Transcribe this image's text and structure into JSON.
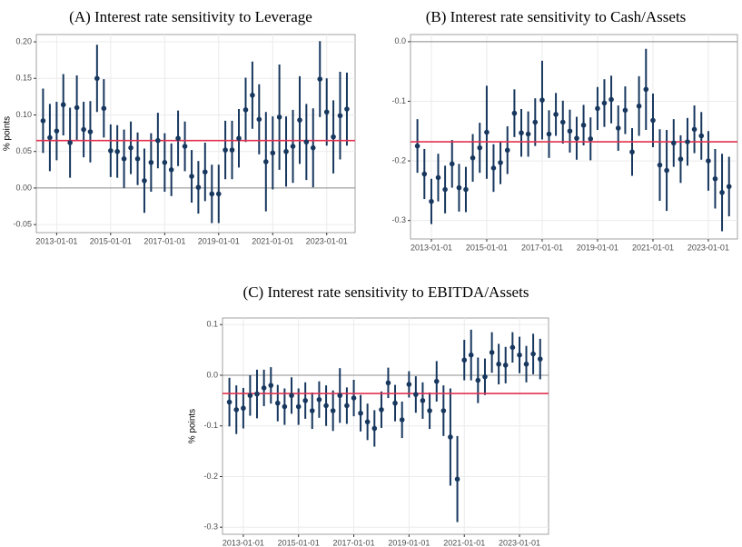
{
  "chart_data": [
    {
      "type": "errorbar",
      "title": "(A)  Interest rate sensitivity to Leverage",
      "y_label": "% points",
      "x": [
        "2012-07-01",
        "2012-10-01",
        "2013-01-01",
        "2013-04-01",
        "2013-07-01",
        "2013-10-01",
        "2014-01-01",
        "2014-04-01",
        "2014-07-01",
        "2014-10-01",
        "2015-01-01",
        "2015-04-01",
        "2015-07-01",
        "2015-10-01",
        "2016-01-01",
        "2016-04-01",
        "2016-07-01",
        "2016-10-01",
        "2017-01-01",
        "2017-04-01",
        "2017-07-01",
        "2017-10-01",
        "2018-01-01",
        "2018-04-01",
        "2018-07-01",
        "2018-10-01",
        "2019-01-01",
        "2019-04-01",
        "2019-07-01",
        "2019-10-01",
        "2020-01-01",
        "2020-04-01",
        "2020-07-01",
        "2020-10-01",
        "2021-01-01",
        "2021-04-01",
        "2021-07-01",
        "2021-10-01",
        "2022-01-01",
        "2022-04-01",
        "2022-07-01",
        "2022-10-01",
        "2023-01-01",
        "2023-04-01",
        "2023-07-01",
        "2023-10-01"
      ],
      "values": [
        0.092,
        0.069,
        0.078,
        0.114,
        0.062,
        0.11,
        0.08,
        0.077,
        0.15,
        0.109,
        0.051,
        0.05,
        0.04,
        0.055,
        0.04,
        0.01,
        0.035,
        0.065,
        0.035,
        0.025,
        0.068,
        0.057,
        0.016,
        0.001,
        0.022,
        -0.008,
        -0.008,
        0.052,
        0.052,
        0.068,
        0.107,
        0.127,
        0.094,
        0.036,
        0.048,
        0.097,
        0.05,
        0.057,
        0.093,
        0.063,
        0.055,
        0.149,
        0.104,
        0.07,
        0.099,
        0.108
      ],
      "errors": [
        0.044,
        0.046,
        0.04,
        0.042,
        0.048,
        0.044,
        0.038,
        0.042,
        0.046,
        0.04,
        0.036,
        0.036,
        0.04,
        0.036,
        0.036,
        0.044,
        0.04,
        0.038,
        0.04,
        0.036,
        0.038,
        0.034,
        0.036,
        0.036,
        0.04,
        0.04,
        0.04,
        0.04,
        0.04,
        0.04,
        0.044,
        0.046,
        0.048,
        0.068,
        0.05,
        0.072,
        0.048,
        0.05,
        0.06,
        0.052,
        0.054,
        0.052,
        0.046,
        0.05,
        0.06,
        0.05
      ],
      "reference": 0.065,
      "color": "#17375e",
      "reference_color": "#e2304f",
      "xlim": [
        "2012-04-01",
        "2024-01-20"
      ],
      "xticks": [
        "2013-01-01",
        "2015-01-01",
        "2017-01-01",
        "2019-01-01",
        "2021-01-01",
        "2023-01-01"
      ],
      "ylim": [
        -0.061,
        0.21
      ],
      "yticks": [
        {
          "value": 0.2,
          "label": "0.20"
        },
        0.15,
        {
          "value": 0.1,
          "label": "0.10"
        },
        0.05,
        {
          "value": 0,
          "label": "0.00"
        },
        -0.05
      ],
      "grid": true
    },
    {
      "type": "errorbar",
      "title": "(B)  Interest rate sensitivity to Cash/Assets",
      "x": [
        "2012-07-01",
        "2012-10-01",
        "2013-01-01",
        "2013-04-01",
        "2013-07-01",
        "2013-10-01",
        "2014-01-01",
        "2014-04-01",
        "2014-07-01",
        "2014-10-01",
        "2015-01-01",
        "2015-04-01",
        "2015-07-01",
        "2015-10-01",
        "2016-01-01",
        "2016-04-01",
        "2016-07-01",
        "2016-10-01",
        "2017-01-01",
        "2017-04-01",
        "2017-07-01",
        "2017-10-01",
        "2018-01-01",
        "2018-04-01",
        "2018-07-01",
        "2018-10-01",
        "2019-01-01",
        "2019-04-01",
        "2019-07-01",
        "2019-10-01",
        "2020-01-01",
        "2020-04-01",
        "2020-07-01",
        "2020-10-01",
        "2021-01-01",
        "2021-04-01",
        "2021-07-01",
        "2021-10-01",
        "2022-01-01",
        "2022-04-01",
        "2022-07-01",
        "2022-10-01",
        "2023-01-01",
        "2023-04-01",
        "2023-07-01",
        "2023-10-01"
      ],
      "values": [
        -0.175,
        -0.222,
        -0.268,
        -0.228,
        -0.248,
        -0.205,
        -0.245,
        -0.248,
        -0.195,
        -0.178,
        -0.152,
        -0.212,
        -0.203,
        -0.182,
        -0.12,
        -0.153,
        -0.155,
        -0.135,
        -0.098,
        -0.155,
        -0.122,
        -0.135,
        -0.15,
        -0.162,
        -0.14,
        -0.163,
        -0.112,
        -0.103,
        -0.097,
        -0.145,
        -0.115,
        -0.185,
        -0.108,
        -0.08,
        -0.132,
        -0.207,
        -0.216,
        -0.17,
        -0.197,
        -0.168,
        -0.147,
        -0.158,
        -0.2,
        -0.23,
        -0.253,
        -0.243
      ],
      "errors": [
        0.045,
        0.042,
        0.038,
        0.04,
        0.04,
        0.04,
        0.04,
        0.038,
        0.04,
        0.042,
        0.078,
        0.04,
        0.036,
        0.04,
        0.04,
        0.04,
        0.038,
        0.04,
        0.066,
        0.04,
        0.036,
        0.036,
        0.036,
        0.036,
        0.034,
        0.036,
        0.036,
        0.04,
        0.04,
        0.038,
        0.04,
        0.04,
        0.05,
        0.068,
        0.045,
        0.06,
        0.068,
        0.04,
        0.04,
        0.04,
        0.04,
        0.04,
        0.05,
        0.05,
        0.065,
        0.05
      ],
      "reference": -0.168,
      "color": "#17375e",
      "reference_color": "#e2304f",
      "xlim": [
        "2012-04-01",
        "2024-01-20"
      ],
      "xticks": [
        "2013-01-01",
        "2015-01-01",
        "2017-01-01",
        "2019-01-01",
        "2021-01-01",
        "2023-01-01"
      ],
      "ylim": [
        -0.331,
        0.012
      ],
      "yticks": [
        {
          "value": 0,
          "label": "0.0"
        },
        -0.1,
        -0.2,
        -0.3
      ],
      "grid": true
    },
    {
      "type": "errorbar",
      "title": "(C) Interest rate sensitivity to EBITDA/Assets",
      "y_label": "% points",
      "x": [
        "2012-07-01",
        "2012-10-01",
        "2013-01-01",
        "2013-04-01",
        "2013-07-01",
        "2013-10-01",
        "2014-01-01",
        "2014-04-01",
        "2014-07-01",
        "2014-10-01",
        "2015-01-01",
        "2015-04-01",
        "2015-07-01",
        "2015-10-01",
        "2016-01-01",
        "2016-04-01",
        "2016-07-01",
        "2016-10-01",
        "2017-01-01",
        "2017-04-01",
        "2017-07-01",
        "2017-10-01",
        "2018-01-01",
        "2018-04-01",
        "2018-07-01",
        "2018-10-01",
        "2019-01-01",
        "2019-04-01",
        "2019-07-01",
        "2019-10-01",
        "2020-01-01",
        "2020-04-01",
        "2020-07-01",
        "2020-10-01",
        "2021-01-01",
        "2021-04-01",
        "2021-07-01",
        "2021-10-01",
        "2022-01-01",
        "2022-04-01",
        "2022-07-01",
        "2022-10-01",
        "2023-01-01",
        "2023-04-01",
        "2023-07-01",
        "2023-10-01"
      ],
      "values": [
        -0.053,
        -0.068,
        -0.065,
        -0.04,
        -0.037,
        -0.025,
        -0.02,
        -0.055,
        -0.062,
        -0.04,
        -0.062,
        -0.05,
        -0.07,
        -0.048,
        -0.06,
        -0.07,
        -0.04,
        -0.06,
        -0.045,
        -0.075,
        -0.092,
        -0.105,
        -0.068,
        -0.015,
        -0.055,
        -0.088,
        -0.018,
        -0.038,
        -0.05,
        -0.07,
        -0.012,
        -0.07,
        -0.122,
        -0.205,
        0.03,
        0.04,
        -0.01,
        -0.003,
        0.045,
        0.022,
        0.02,
        0.055,
        0.04,
        0.022,
        0.042,
        0.032
      ],
      "errors": [
        0.048,
        0.048,
        0.04,
        0.04,
        0.048,
        0.036,
        0.036,
        0.036,
        0.036,
        0.036,
        0.036,
        0.036,
        0.036,
        0.036,
        0.04,
        0.04,
        0.054,
        0.036,
        0.036,
        0.036,
        0.036,
        0.036,
        0.036,
        0.03,
        0.036,
        0.036,
        0.026,
        0.036,
        0.036,
        0.036,
        0.04,
        0.05,
        0.096,
        0.085,
        0.04,
        0.05,
        0.045,
        0.036,
        0.04,
        0.04,
        0.036,
        0.03,
        0.036,
        0.036,
        0.04,
        0.04
      ],
      "reference": -0.036,
      "color": "#17375e",
      "reference_color": "#e2304f",
      "xlim": [
        "2012-04-01",
        "2024-01-20"
      ],
      "xticks": [
        "2013-01-01",
        "2015-01-01",
        "2017-01-01",
        "2019-01-01",
        "2021-01-01",
        "2023-01-01"
      ],
      "ylim": [
        -0.314,
        0.113
      ],
      "yticks": [
        0.1,
        {
          "value": 0,
          "label": "0.0"
        },
        -0.1,
        -0.2,
        -0.3
      ],
      "grid": true
    }
  ]
}
